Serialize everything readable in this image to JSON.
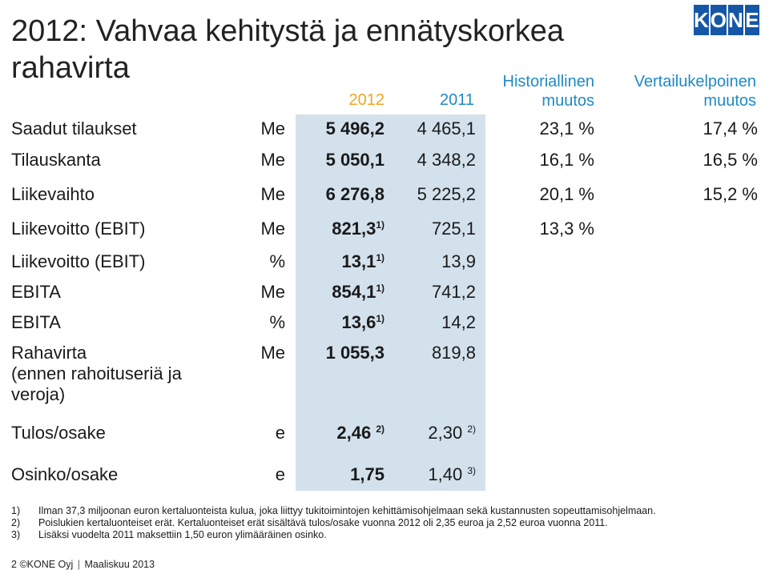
{
  "title": "2012: Vahvaa kehitystä ja ennätyskorkea rahavirta",
  "logo": [
    "K",
    "O",
    "N",
    "E"
  ],
  "colors": {
    "logo_blue": "#1656a6",
    "accent_orange": "#f3a51d",
    "header_blue": "#1f8ac4",
    "shade": "#d3e1ec"
  },
  "header": {
    "y2012": "2012",
    "y2011": "2011",
    "hist": "Historiallinen muutos",
    "vert": "Vertailukelpoinen muutos"
  },
  "rows": [
    {
      "label": "Saadut tilaukset",
      "unit": "Me",
      "v2012": "5 496,2",
      "v2012_sup": "",
      "v2011": "4 465,1",
      "v2011_sup": "",
      "hist": "23,1 %",
      "vert": "17,4 %"
    },
    {
      "label": "Tilauskanta",
      "unit": "Me",
      "v2012": "5 050,1",
      "v2012_sup": "",
      "v2011": "4 348,2",
      "v2011_sup": "",
      "hist": "16,1 %",
      "vert": "16,5 %"
    },
    {
      "label": "Liikevaihto",
      "unit": "Me",
      "v2012": "6 276,8",
      "v2012_sup": "",
      "v2011": "5 225,2",
      "v2011_sup": "",
      "hist": "20,1 %",
      "vert": "15,2 %"
    },
    {
      "label": "Liikevoitto (EBIT)",
      "unit": "Me",
      "v2012": "821,3",
      "v2012_sup": "1)",
      "v2011": "725,1",
      "v2011_sup": "",
      "hist": "13,3 %",
      "vert": ""
    },
    {
      "label": "Liikevoitto (EBIT)",
      "unit": "%",
      "v2012": "13,1",
      "v2012_sup": "1)",
      "v2011": "13,9",
      "v2011_sup": "",
      "hist": "",
      "vert": ""
    },
    {
      "label": "EBITA",
      "unit": "Me",
      "v2012": "854,1",
      "v2012_sup": "1)",
      "v2011": "741,2",
      "v2011_sup": "",
      "hist": "",
      "vert": ""
    },
    {
      "label": "EBITA",
      "unit": "%",
      "v2012": "13,6",
      "v2012_sup": "1)",
      "v2011": "14,2",
      "v2011_sup": "",
      "hist": "",
      "vert": ""
    },
    {
      "label": "Rahavirta\n(ennen rahoituseriä ja\nveroja)",
      "unit": "Me",
      "v2012": "1 055,3",
      "v2012_sup": "",
      "v2011": "819,8",
      "v2011_sup": "",
      "hist": "",
      "vert": ""
    },
    {
      "label": "Tulos/osake",
      "unit": "e",
      "v2012": "2,46 ",
      "v2012_sup": "2)",
      "v2011": "2,30 ",
      "v2011_sup": "2)",
      "hist": "",
      "vert": ""
    },
    {
      "label": "Osinko/osake",
      "unit": "e",
      "v2012": "1,75",
      "v2012_sup": "",
      "v2011": "1,40 ",
      "v2011_sup": "3)",
      "hist": "",
      "vert": ""
    }
  ],
  "notes": [
    {
      "num": "1)",
      "text": "Ilman 37,3 miljoonan euron kertaluonteista kulua, joka liittyy tukitoimintojen kehittämisohjelmaan sekä kustannusten sopeuttamisohjelmaan."
    },
    {
      "num": "2)",
      "text": "Poislukien kertaluonteiset erät. Kertaluonteiset erät sisältävä tulos/osake vuonna 2012 oli 2,35 euroa ja 2,52 euroa vuonna 2011."
    },
    {
      "num": "3)",
      "text": "Lisäksi vuodelta 2011 maksettiin 1,50 euron ylimääräinen osinko."
    }
  ],
  "footer": {
    "page": "2",
    "copyright": "©KONE Oyj",
    "date": "Maaliskuu 2013"
  }
}
